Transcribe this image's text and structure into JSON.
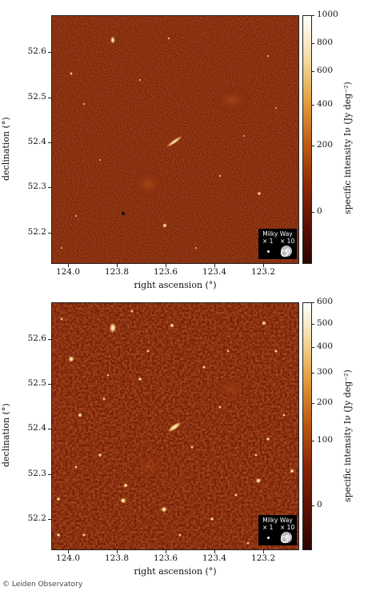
{
  "panels": [
    {
      "xlabel": "right ascension (°)",
      "ylabel": "declination (°)",
      "colorbar_label": "specific intensity Iν (Jy deg⁻²)",
      "colorbar_ticks": [
        "1000",
        "800",
        "600",
        "400",
        "200",
        "0"
      ],
      "xticks": [
        "124.0",
        "123.8",
        "123.6",
        "123.4",
        "123.2"
      ],
      "yticks": [
        "52.6",
        "52.5",
        "52.4",
        "52.3",
        "52.2"
      ],
      "legend": {
        "title": "Milky Way",
        "scale1": "× 1",
        "scale2": "× 10"
      }
    },
    {
      "xlabel": "right ascension (°)",
      "ylabel": "declination (°)",
      "colorbar_label": "specific intensity Iν (Jy deg⁻²)",
      "colorbar_ticks": [
        "600",
        "500",
        "400",
        "300",
        "200",
        "100",
        "0"
      ],
      "xticks": [
        "124.0",
        "123.8",
        "123.6",
        "123.4",
        "123.2"
      ],
      "yticks": [
        "52.6",
        "52.5",
        "52.4",
        "52.3",
        "52.2"
      ],
      "legend": {
        "title": "Milky Way",
        "scale1": "× 1",
        "scale2": "× 10"
      }
    }
  ],
  "credit": "© Leiden Observatory",
  "colors": {
    "background_map": "#6e1a06",
    "colormap_top": "#ffffff",
    "colormap_mid": "#e0a040",
    "colormap_low": "#2a0602"
  }
}
